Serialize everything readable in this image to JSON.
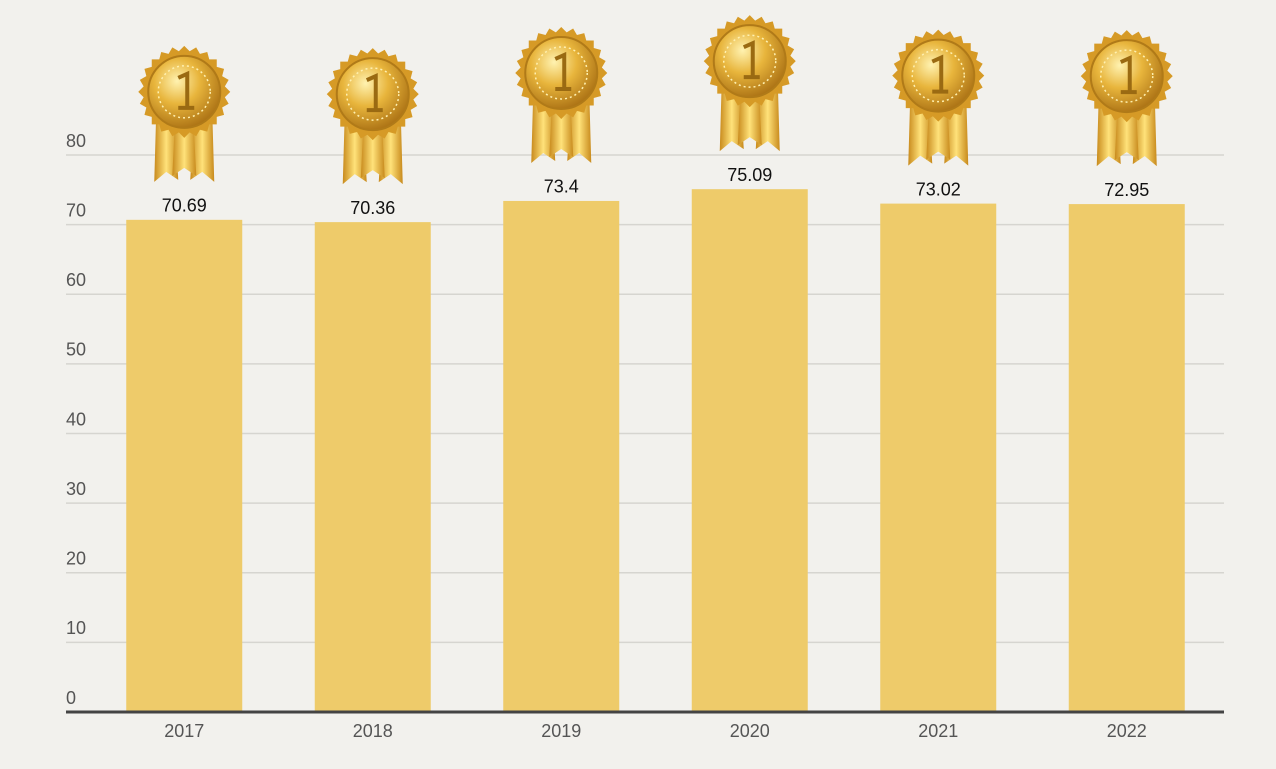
{
  "chart_data": {
    "type": "bar",
    "categories": [
      "2017",
      "2018",
      "2019",
      "2020",
      "2021",
      "2022"
    ],
    "values": [
      70.69,
      70.36,
      73.4,
      75.09,
      73.02,
      72.95
    ],
    "color": "#eecb6a",
    "ylim": [
      0,
      80
    ],
    "yticks": [
      0,
      10,
      20,
      30,
      40,
      50,
      60,
      70,
      80
    ],
    "grid": true
  }
}
